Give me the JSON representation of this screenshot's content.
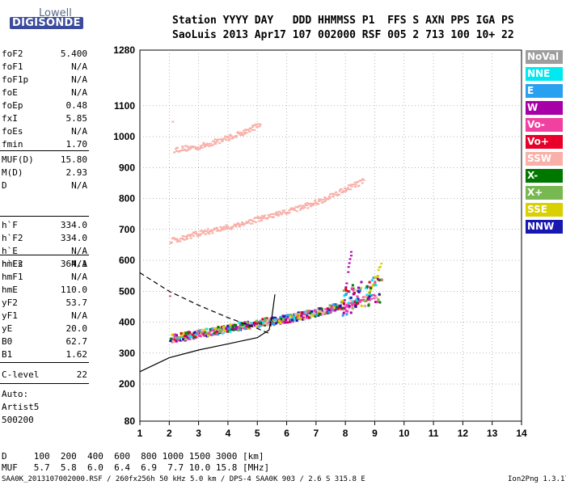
{
  "logo": {
    "line1": "Lowell",
    "line2": "DIGISONDE"
  },
  "header": {
    "line1": "Station YYYY DAY   DDD HHMMSS P1  FFS S AXN PPS IGA PS",
    "line2": "SaoLuis 2013 Apr17 107 002000 RSF 005 2 713 100 10+ 22"
  },
  "params": {
    "g1": [
      {
        "name": "foF2",
        "value": "5.400"
      },
      {
        "name": "foF1",
        "value": "N/A"
      },
      {
        "name": "foF1p",
        "value": "N/A"
      },
      {
        "name": "foE",
        "value": "N/A"
      },
      {
        "name": "foEp",
        "value": "0.48"
      },
      {
        "name": "fxI",
        "value": "5.85"
      },
      {
        "name": "foEs",
        "value": "N/A"
      },
      {
        "name": "fmin",
        "value": "1.70"
      }
    ],
    "g2": [
      {
        "name": "MUF(D)",
        "value": "15.80"
      },
      {
        "name": "M(D)",
        "value": "2.93"
      },
      {
        "name": "D",
        "value": "N/A"
      }
    ],
    "g3": [
      {
        "name": "h`F",
        "value": "334.0"
      },
      {
        "name": "h`F2",
        "value": "334.0"
      },
      {
        "name": "h`E",
        "value": "N/A"
      },
      {
        "name": "h`Es",
        "value": "N/A"
      }
    ],
    "g4": [
      {
        "name": "hmF2",
        "value": "364.1"
      },
      {
        "name": "hmF1",
        "value": "N/A"
      },
      {
        "name": "hmE",
        "value": "110.0"
      },
      {
        "name": "yF2",
        "value": "53.7"
      },
      {
        "name": "yF1",
        "value": "N/A"
      },
      {
        "name": "yE",
        "value": "20.0"
      },
      {
        "name": "B0",
        "value": "62.7"
      },
      {
        "name": "B1",
        "value": "1.62"
      }
    ],
    "g5": [
      {
        "name": "C-level",
        "value": "22"
      }
    ]
  },
  "auto": {
    "line1": "Auto:",
    "line2": "Artist5",
    "line3": "500200"
  },
  "legend": [
    {
      "label": "NoVal",
      "color": "#9e9e9e"
    },
    {
      "label": "NNE",
      "color": "#00e8f0"
    },
    {
      "label": "E",
      "color": "#2aa0f0"
    },
    {
      "label": "W",
      "color": "#a800a8"
    },
    {
      "label": "Vo-",
      "color": "#f040a0"
    },
    {
      "label": "Vo+",
      "color": "#e8002a"
    },
    {
      "label": "SSW",
      "color": "#f8b0a8"
    },
    {
      "label": "X-",
      "color": "#007800"
    },
    {
      "label": "X+",
      "color": "#78b850"
    },
    {
      "label": "SSE",
      "color": "#d8d000"
    },
    {
      "label": "NNW",
      "color": "#1818b0"
    }
  ],
  "freq_table": {
    "row1": "D     100  200  400  600  800 1000 1500 3000 [km]",
    "row2": "MUF   5.7  5.8  6.0  6.4  6.9  7.7 10.0 15.8 [MHz]"
  },
  "footer": {
    "left": "SAA0K_2013107002000.RSF / 260fx256h 50 kHz 5.0 km / DPS-4 SAA0K 903 / 2.6 S 315.8 E",
    "right": "Ion2Png 1.3.17"
  },
  "chart_data": {
    "type": "scatter",
    "xlim": [
      1,
      14
    ],
    "ylim": [
      80,
      1280
    ],
    "x_ticks": [
      1,
      2,
      3,
      4,
      5,
      6,
      7,
      8,
      9,
      10,
      11,
      12,
      13,
      14
    ],
    "y_ticks": [
      80,
      200,
      300,
      400,
      500,
      600,
      700,
      800,
      900,
      1000,
      1100,
      1280
    ],
    "grid": "dotted",
    "legend_position": "right",
    "traces": [
      {
        "name": "SSW",
        "color": "#f8b0a8",
        "points": [
          [
            2.1,
            960
          ],
          [
            3.0,
            970
          ],
          [
            4.0,
            1000
          ],
          [
            4.6,
            1020
          ],
          [
            5.1,
            1045
          ]
        ]
      },
      {
        "name": "SSW",
        "color": "#f8b0a8",
        "points": [
          [
            2.0,
            665
          ],
          [
            3.0,
            690
          ],
          [
            4.0,
            710
          ],
          [
            5.0,
            735
          ],
          [
            6.0,
            760
          ],
          [
            7.0,
            790
          ],
          [
            8.0,
            835
          ],
          [
            8.6,
            860
          ]
        ]
      },
      {
        "name": "Vo-",
        "color": "#f040a0",
        "points": [
          [
            2.0,
            345
          ],
          [
            3.0,
            360
          ],
          [
            4.0,
            380
          ],
          [
            5.0,
            395
          ],
          [
            6.0,
            410
          ],
          [
            7.0,
            430
          ],
          [
            8.0,
            455
          ],
          [
            9.0,
            490
          ]
        ]
      },
      {
        "name": "W",
        "color": "#a800a8",
        "points": [
          [
            7.9,
            460
          ],
          [
            8.0,
            520
          ],
          [
            8.1,
            600
          ],
          [
            8.2,
            640
          ]
        ]
      },
      {
        "name": "SSE",
        "color": "#d8d000",
        "points": [
          [
            8.7,
            480
          ],
          [
            9.0,
            540
          ],
          [
            9.2,
            600
          ]
        ]
      }
    ],
    "o_trace": [
      [
        1.0,
        240
      ],
      [
        2.0,
        285
      ],
      [
        3.0,
        310
      ],
      [
        4.0,
        330
      ],
      [
        5.0,
        350
      ],
      [
        5.4,
        375
      ],
      [
        5.5,
        420
      ],
      [
        5.6,
        490
      ]
    ],
    "o_profile_dashed": [
      [
        1.0,
        560
      ],
      [
        2.0,
        500
      ],
      [
        3.0,
        455
      ],
      [
        4.0,
        415
      ],
      [
        5.0,
        380
      ],
      [
        5.4,
        364
      ]
    ]
  }
}
